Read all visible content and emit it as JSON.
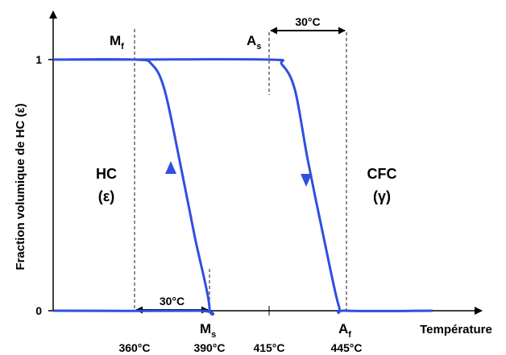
{
  "chart_data": {
    "type": "line",
    "title": "",
    "xlabel": "Température",
    "ylabel": "Fraction volumique de HC (ε)",
    "y_ticks": [
      {
        "value": 0,
        "label": "0"
      },
      {
        "value": 1,
        "label": "1"
      }
    ],
    "x_ticks": [
      {
        "value": 360,
        "label": "360°C"
      },
      {
        "value": 390,
        "label": "390°C"
      },
      {
        "value": 415,
        "label": "415°C"
      },
      {
        "value": 445,
        "label": "445°C"
      }
    ],
    "series": [
      {
        "role": "cooling",
        "direction": "up",
        "points": [
          [
            300,
            0.0
          ],
          [
            385,
            0.0
          ],
          [
            390,
            0.01
          ],
          [
            384,
            0.3
          ],
          [
            378,
            0.6
          ],
          [
            372,
            0.88
          ],
          [
            367,
            0.98
          ],
          [
            360,
            1.0
          ],
          [
            300,
            1.0
          ]
        ]
      },
      {
        "role": "heating",
        "direction": "down",
        "points": [
          [
            300,
            1.0
          ],
          [
            360,
            1.0
          ],
          [
            415,
            1.0
          ],
          [
            420,
            0.98
          ],
          [
            425,
            0.88
          ],
          [
            430,
            0.6
          ],
          [
            436,
            0.3
          ],
          [
            442,
            0.02
          ],
          [
            445,
            0.0
          ],
          [
            480,
            0.0
          ]
        ]
      }
    ],
    "markers": [
      {
        "label": "Mf",
        "base": "M",
        "sub": "f",
        "x": 360
      },
      {
        "label": "Ms",
        "base": "M",
        "sub": "s",
        "x": 390
      },
      {
        "label": "As",
        "base": "A",
        "sub": "s",
        "x": 415
      },
      {
        "label": "Af",
        "base": "A",
        "sub": "f",
        "x": 445
      }
    ],
    "intervals": [
      {
        "label": "30°C",
        "from": 415,
        "to": 445
      },
      {
        "label": "30°C",
        "from": 360,
        "to": 390
      }
    ],
    "phase_labels": [
      {
        "name": "HC",
        "symbol": "(ε)"
      },
      {
        "name": "CFC",
        "symbol": "(γ)"
      }
    ],
    "colors": {
      "curve": "#2f4fe0",
      "axis": "#000000",
      "guide": "#000000"
    }
  }
}
